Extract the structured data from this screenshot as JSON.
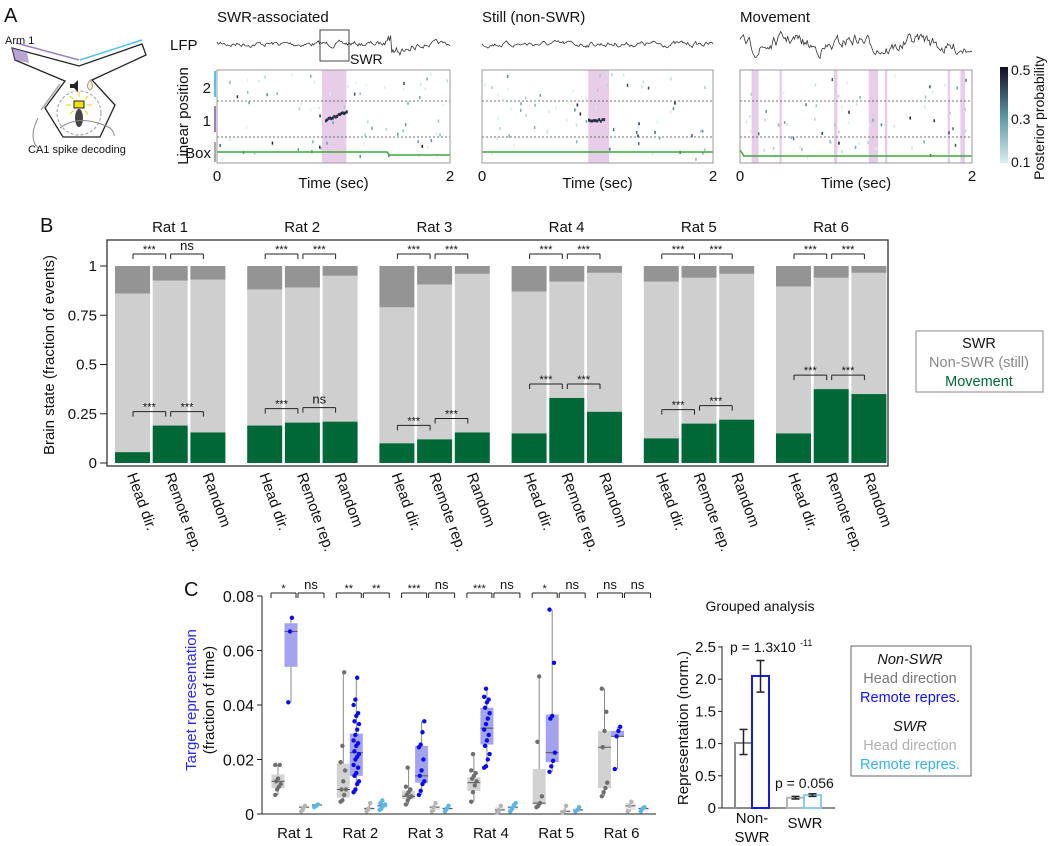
{
  "figure": {
    "panel_labels": [
      "A",
      "B",
      "C"
    ]
  },
  "panel_a": {
    "schematic": {
      "arm_label": "Arm 1",
      "decoding_label": "CA1 spike decoding"
    },
    "lfp_label": "LFP",
    "swr_label": "SWR",
    "ylabel": "Linear position",
    "row_labels": [
      "2",
      "1",
      "Box"
    ],
    "xlabel": "Time (sec)",
    "xticks": [
      "0",
      "2"
    ],
    "panels": [
      {
        "title": "SWR-associated",
        "highlights": [
          [
            0.9,
            1.11
          ]
        ]
      },
      {
        "title": "Still (non-SWR)",
        "highlights": [
          [
            0.92,
            1.1
          ]
        ]
      },
      {
        "title": "Movement",
        "highlights": [
          [
            0.1,
            0.16
          ],
          [
            0.34,
            0.36
          ],
          [
            0.81,
            0.84
          ],
          [
            1.11,
            1.19
          ],
          [
            1.25,
            1.27
          ],
          [
            1.79,
            1.81
          ],
          [
            1.9,
            1.94
          ]
        ]
      }
    ],
    "colorbar": {
      "label": "Posterior probability",
      "ticks": [
        "0.5",
        "0.3",
        "0.1"
      ],
      "range": [
        0.1,
        0.5
      ]
    },
    "colors": {
      "arm1": "#9b7fc0",
      "arm2": "#4fc3f0",
      "box": "#aaaaaa",
      "highlight": "#e7cde7",
      "position": "#3aaa3a"
    }
  },
  "chart_data": [
    {
      "type": "bar",
      "stacked": true,
      "ylabel": "Brain state (fraction of events)",
      "yticks": [
        "0",
        "0.25",
        "0.5",
        "0.75",
        "1"
      ],
      "ylim": [
        0,
        1
      ],
      "categories": [
        "Head dir.",
        "Remote rep.",
        "Random"
      ],
      "colors": {
        "swr": "#949494",
        "still": "#cfcfcf",
        "movement": "#006837"
      },
      "legend": {
        "placement": "right",
        "entries": [
          {
            "label": "SWR",
            "color": "#111111"
          },
          {
            "label": "Non-SWR (still)",
            "color": "#888888"
          },
          {
            "label": "Movement",
            "color": "#006837"
          }
        ]
      },
      "groups": [
        {
          "title": "Rat 1",
          "movement": [
            0.055,
            0.19,
            0.155
          ],
          "swr": [
            0.14,
            0.075,
            0.07
          ],
          "sig_top": [
            "***",
            "ns"
          ],
          "sig_bottom": [
            "***",
            "***"
          ]
        },
        {
          "title": "Rat 2",
          "movement": [
            0.19,
            0.205,
            0.21
          ],
          "swr": [
            0.12,
            0.11,
            0.05
          ],
          "sig_top": [
            "***",
            "***"
          ],
          "sig_bottom": [
            "***",
            "ns"
          ]
        },
        {
          "title": "Rat 3",
          "movement": [
            0.1,
            0.12,
            0.155
          ],
          "swr": [
            0.21,
            0.095,
            0.04
          ],
          "sig_top": [
            "***",
            "***"
          ],
          "sig_bottom": [
            "***",
            "***"
          ]
        },
        {
          "title": "Rat 4",
          "movement": [
            0.15,
            0.33,
            0.26
          ],
          "swr": [
            0.13,
            0.08,
            0.035
          ],
          "sig_top": [
            "***",
            "***"
          ],
          "sig_bottom": [
            "***",
            "***"
          ]
        },
        {
          "title": "Rat 5",
          "movement": [
            0.125,
            0.2,
            0.22
          ],
          "swr": [
            0.08,
            0.06,
            0.04
          ],
          "sig_top": [
            "***",
            "***"
          ],
          "sig_bottom": [
            "***",
            "***"
          ]
        },
        {
          "title": "Rat 6",
          "movement": [
            0.15,
            0.375,
            0.35
          ],
          "swr": [
            0.105,
            0.06,
            0.035
          ],
          "sig_top": [
            "***",
            "***"
          ],
          "sig_bottom": [
            "***",
            "***"
          ]
        }
      ]
    },
    {
      "type": "box",
      "ylabel": "Target representation",
      "ylabel_sub": "(fraction of time)",
      "yticks": [
        "0",
        "0.02",
        "0.04",
        "0.06",
        "0.08"
      ],
      "ylim": [
        0,
        0.08
      ],
      "categories": [
        "Rat 1",
        "Rat 2",
        "Rat 3",
        "Rat 4",
        "Rat 5",
        "Rat 6"
      ],
      "series": [
        {
          "name": "Non-SWR head direction",
          "box": "#d2d2d2",
          "point": "#6e6e6e"
        },
        {
          "name": "Non-SWR remote repres.",
          "box": "#a3a3ee",
          "point": "#0a0af0"
        },
        {
          "name": "SWR head direction",
          "box": "#e6e6e6",
          "point": "#b4b4b4"
        },
        {
          "name": "SWR remote repres.",
          "box": "#e6e6e6",
          "point": "#5ab8e8"
        }
      ],
      "groups": [
        {
          "sig": [
            "*",
            "ns"
          ],
          "boxes": [
            {
              "q": [
                0.0095,
                0.012,
                0.0145
              ],
              "pts": [
                0.007,
                0.009,
                0.01,
                0.011,
                0.012,
                0.013,
                0.018,
                0.018
              ]
            },
            {
              "q": [
                0.054,
                0.067,
                0.07
              ],
              "pts": [
                0.041,
                0.067,
                0.072
              ]
            },
            {
              "q": [
                0.002,
                0.0025,
                0.003
              ],
              "pts": [
                0.001,
                0.002,
                0.003
              ]
            },
            {
              "q": [
                0.0028,
                0.0033,
                0.0036
              ],
              "pts": [
                0.0025,
                0.003,
                0.0035
              ]
            }
          ]
        },
        {
          "sig": [
            "**",
            "**"
          ],
          "boxes": [
            {
              "q": [
                0.006,
                0.009,
                0.0185
              ],
              "pts": [
                0.0045,
                0.005,
                0.007,
                0.009,
                0.009,
                0.012,
                0.016,
                0.019,
                0.025,
                0.052
              ]
            },
            {
              "q": [
                0.014,
                0.0225,
                0.0295
              ],
              "pts": [
                0.008,
                0.009,
                0.011,
                0.012,
                0.014,
                0.015,
                0.017,
                0.018,
                0.02,
                0.021,
                0.022,
                0.023,
                0.025,
                0.026,
                0.027,
                0.029,
                0.031,
                0.033,
                0.034,
                0.036,
                0.037,
                0.04,
                0.042,
                0.05
              ]
            },
            {
              "q": [
                0.0015,
                0.002,
                0.0025
              ],
              "pts": [
                0.001,
                0.002,
                0.004
              ]
            },
            {
              "q": [
                0.002,
                0.003,
                0.004
              ],
              "pts": [
                0.0015,
                0.002,
                0.003,
                0.0035,
                0.004,
                0.005
              ]
            }
          ]
        },
        {
          "sig": [
            "***",
            "ns"
          ],
          "boxes": [
            {
              "q": [
                0.0055,
                0.0065,
                0.0085
              ],
              "pts": [
                0.0035,
                0.005,
                0.006,
                0.0065,
                0.007,
                0.008,
                0.009,
                0.01,
                0.017
              ]
            },
            {
              "q": [
                0.0115,
                0.014,
                0.025
              ],
              "pts": [
                0.007,
                0.0085,
                0.011,
                0.012,
                0.014,
                0.016,
                0.02,
                0.0245,
                0.0255,
                0.03,
                0.034
              ]
            },
            {
              "q": [
                0.0015,
                0.0025,
                0.003
              ],
              "pts": [
                0.001,
                0.0025,
                0.004
              ]
            },
            {
              "q": [
                0.0015,
                0.002,
                0.0025
              ],
              "pts": [
                0.001,
                0.002,
                0.003
              ]
            }
          ]
        },
        {
          "sig": [
            "***",
            "ns"
          ],
          "boxes": [
            {
              "q": [
                0.0085,
                0.0115,
                0.0135
              ],
              "pts": [
                0.0045,
                0.008,
                0.0105,
                0.012,
                0.013,
                0.014,
                0.015,
                0.016,
                0.022
              ]
            },
            {
              "q": [
                0.0255,
                0.0315,
                0.039
              ],
              "pts": [
                0.017,
                0.0175,
                0.02,
                0.022,
                0.025,
                0.027,
                0.029,
                0.031,
                0.033,
                0.035,
                0.037,
                0.039,
                0.041,
                0.042,
                0.043,
                0.046
              ]
            },
            {
              "q": [
                0.001,
                0.0015,
                0.0025
              ],
              "pts": [
                0.0005,
                0.0015,
                0.003
              ]
            },
            {
              "q": [
                0.0015,
                0.0025,
                0.003
              ],
              "pts": [
                0.001,
                0.002,
                0.003,
                0.004
              ]
            }
          ]
        },
        {
          "sig": [
            "*",
            "ns"
          ],
          "boxes": [
            {
              "q": [
                0.0035,
                0.004,
                0.0165
              ],
              "pts": [
                0.0025,
                0.003,
                0.004,
                0.0065,
                0.0265,
                0.0505
              ]
            },
            {
              "q": [
                0.019,
                0.0225,
                0.0365
              ],
              "pts": [
                0.0155,
                0.0175,
                0.0195,
                0.0225,
                0.035,
                0.036,
                0.0555,
                0.075
              ]
            },
            {
              "q": [
                0.0005,
                0.001,
                0.0015
              ],
              "pts": [
                0.0005,
                0.001,
                0.003
              ]
            },
            {
              "q": [
                0.001,
                0.0015,
                0.002
              ],
              "pts": [
                0.001,
                0.0015,
                0.0025
              ]
            }
          ]
        },
        {
          "sig": [
            "ns",
            "ns"
          ],
          "boxes": [
            {
              "q": [
                0.0095,
                0.0245,
                0.0305
              ],
              "pts": [
                0.0065,
                0.008,
                0.0095,
                0.0115,
                0.0245,
                0.0305,
                0.0375,
                0.046
              ]
            },
            {
              "q": [
                0.0285,
                0.0285,
                0.0305
              ],
              "pts": [
                0.0165,
                0.0285,
                0.0305,
                0.032
              ]
            },
            {
              "q": [
                0.0015,
                0.003,
                0.004
              ],
              "pts": [
                0.001,
                0.003,
                0.0045
              ]
            },
            {
              "q": [
                0.001,
                0.002,
                0.0025
              ],
              "pts": [
                0.001,
                0.002,
                0.0025
              ]
            }
          ]
        }
      ]
    },
    {
      "type": "bar",
      "title": "Grouped analysis",
      "ylabel": "Representation (norm.)",
      "yticks": [
        "0",
        "0.5",
        "1.0",
        "1.5",
        "2.0",
        "2.5"
      ],
      "ylim": [
        0,
        2.5
      ],
      "categories": [
        [
          "Non-",
          "SWR"
        ],
        [
          "SWR"
        ]
      ],
      "bars": [
        {
          "group": 0,
          "series": "Head direction",
          "value": 1.01,
          "err": [
            0.83,
            1.22
          ],
          "color": "#8a8a8a"
        },
        {
          "group": 0,
          "series": "Remote repres.",
          "value": 2.05,
          "err": [
            1.8,
            2.29
          ],
          "color": "#1a1adc"
        },
        {
          "group": 1,
          "series": "Head direction",
          "value": 0.16,
          "err": [
            0.14,
            0.18
          ],
          "color": "#b4b4b4"
        },
        {
          "group": 1,
          "series": "Remote repres.",
          "value": 0.2,
          "err": [
            0.18,
            0.22
          ],
          "color": "#8ecbea"
        }
      ],
      "pvalues": [
        {
          "text": "p = 1.3x10",
          "exponent": "-11"
        },
        {
          "text": "p = 0.056"
        }
      ],
      "legend": {
        "placement": "right",
        "sections": [
          {
            "header": "Non-SWR",
            "entries": [
              {
                "label": "Head direction",
                "color": "#777777"
              },
              {
                "label": "Remote repres.",
                "color": "#1010f0"
              }
            ]
          },
          {
            "header": "SWR",
            "entries": [
              {
                "label": "Head direction",
                "color": "#b0b0b0"
              },
              {
                "label": "Remote repres.",
                "color": "#38b0e8"
              }
            ]
          }
        ]
      }
    }
  ]
}
